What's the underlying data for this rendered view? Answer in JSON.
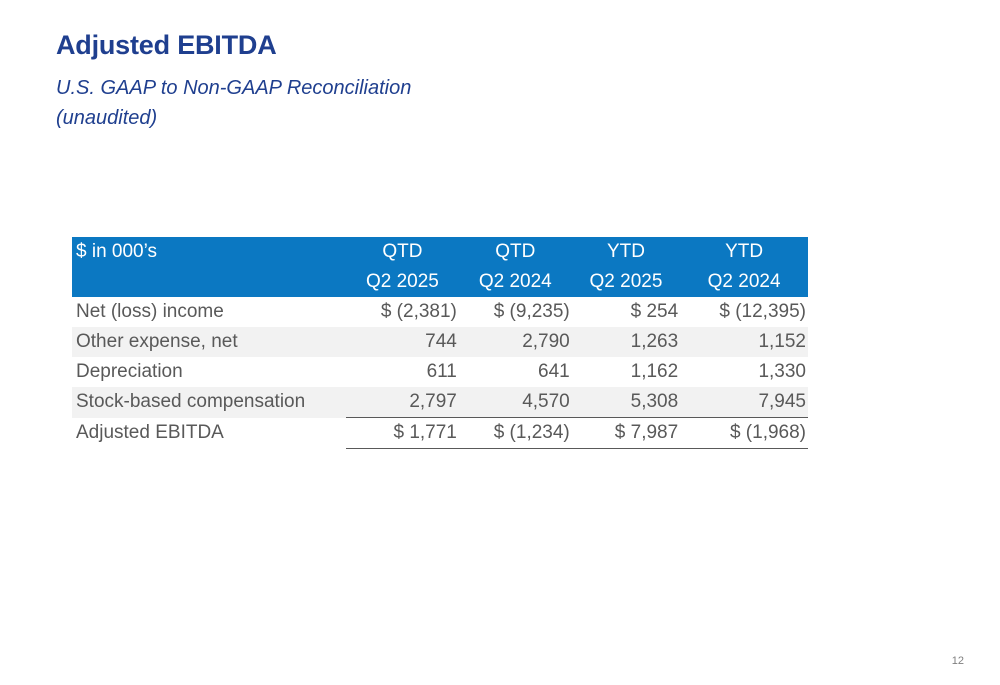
{
  "title": "Adjusted EBITDA",
  "subtitle": [
    "U.S. GAAP to Non-GAAP Reconciliation",
    "(unaudited)"
  ],
  "table": {
    "unit_label": "$ in 000’s",
    "columns": [
      {
        "line1": "QTD",
        "line2": "Q2 2025"
      },
      {
        "line1": "QTD",
        "line2": "Q2 2024"
      },
      {
        "line1": "YTD",
        "line2": "Q2 2025"
      },
      {
        "line1": "YTD",
        "line2": "Q2 2024"
      }
    ],
    "rows": [
      {
        "label": "Net (loss) income",
        "values": [
          "$ (2,381)",
          "$ (9,235)",
          "$ 254",
          "$ (12,395)"
        ]
      },
      {
        "label": "Other expense, net",
        "values": [
          "744",
          "2,790",
          "1,263",
          "1,152"
        ]
      },
      {
        "label": "Depreciation",
        "values": [
          "611",
          "641",
          "1,162",
          "1,330"
        ]
      },
      {
        "label": "Stock-based compensation",
        "values": [
          "2,797",
          "4,570",
          "5,308",
          "7,945"
        ]
      },
      {
        "label": "Adjusted EBITDA",
        "values": [
          "$ 1,771",
          "$ (1,234)",
          "$ 7,987",
          "$ (1,968)"
        ]
      }
    ]
  },
  "page_number": "12",
  "colors": {
    "title": "#1f3f8f",
    "header_background": "#0b78c2",
    "row_shade": "#f2f2f2",
    "body_text": "#595959"
  }
}
